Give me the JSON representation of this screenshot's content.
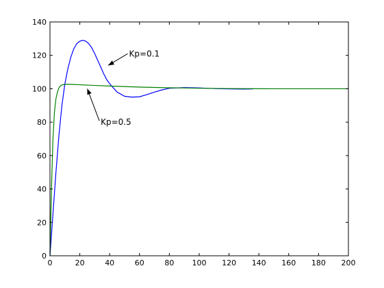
{
  "chart_data": {
    "type": "line",
    "xlim": [
      0,
      200
    ],
    "ylim": [
      0,
      140
    ],
    "x_ticks": [
      "0",
      "20",
      "40",
      "60",
      "80",
      "100",
      "120",
      "140",
      "160",
      "180",
      "200"
    ],
    "y_ticks": [
      "0",
      "20",
      "40",
      "60",
      "80",
      "100",
      "120",
      "140"
    ],
    "grid": false,
    "legend": "none",
    "series": [
      {
        "color": "#0000ff",
        "x": [
          0,
          2,
          4,
          6,
          8,
          10,
          12,
          14,
          16,
          18,
          20,
          22,
          24,
          26,
          28,
          30,
          32,
          34,
          36,
          38,
          40,
          45,
          50,
          55,
          60,
          65,
          70,
          75,
          80,
          90,
          100,
          110,
          120,
          130,
          136
        ],
        "y": [
          0,
          25,
          50,
          72,
          90,
          103,
          112,
          119,
          124,
          127,
          128.5,
          129,
          128.5,
          127,
          124.5,
          121,
          117,
          113,
          109,
          105.5,
          103,
          98,
          95.5,
          95,
          95.2,
          96.5,
          98,
          99.3,
          100.3,
          100.7,
          100.5,
          100.1,
          99.9,
          99.8,
          99.9
        ]
      },
      {
        "color": "#008000",
        "x": [
          0,
          1,
          2,
          3,
          4,
          5,
          6,
          7,
          8,
          10,
          12,
          15,
          20,
          30,
          40,
          60,
          80,
          100,
          120,
          150,
          200
        ],
        "y": [
          0,
          40,
          70,
          86,
          94,
          98,
          100.5,
          101.7,
          102.3,
          102.6,
          102.7,
          102.6,
          102.4,
          102,
          101.6,
          101,
          100.6,
          100.3,
          100.1,
          100,
          100
        ]
      }
    ],
    "annotations": [
      {
        "text": "Kp=0.1",
        "x": 53,
        "y": 121,
        "arrow_to": [
          39,
          114
        ]
      },
      {
        "text": "Kp=0.5",
        "x": 34,
        "y": 80,
        "arrow_to": [
          25,
          100
        ]
      }
    ]
  }
}
